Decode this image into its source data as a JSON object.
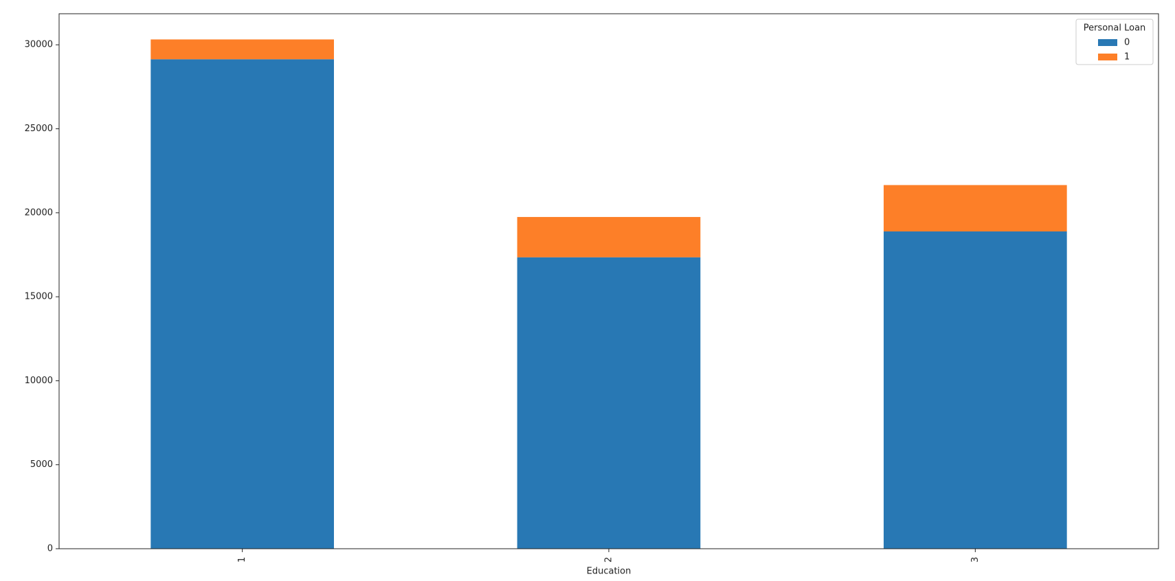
{
  "chart_data": {
    "type": "stacked_bar",
    "xlabel": "Education",
    "categories": [
      "1",
      "2",
      "3"
    ],
    "series": [
      {
        "name": "0",
        "color": "#2878b4",
        "values": [
          29140,
          17350,
          18890
        ]
      },
      {
        "name": "1",
        "color": "#fd7f28",
        "values": [
          1180,
          2400,
          2760
        ]
      }
    ],
    "legend_title": "Personal Loan",
    "legend": "upper right",
    "ylim": [
      0,
      31850
    ],
    "yticks": [
      0,
      5000,
      10000,
      15000,
      20000,
      25000,
      30000
    ],
    "grid": false
  }
}
